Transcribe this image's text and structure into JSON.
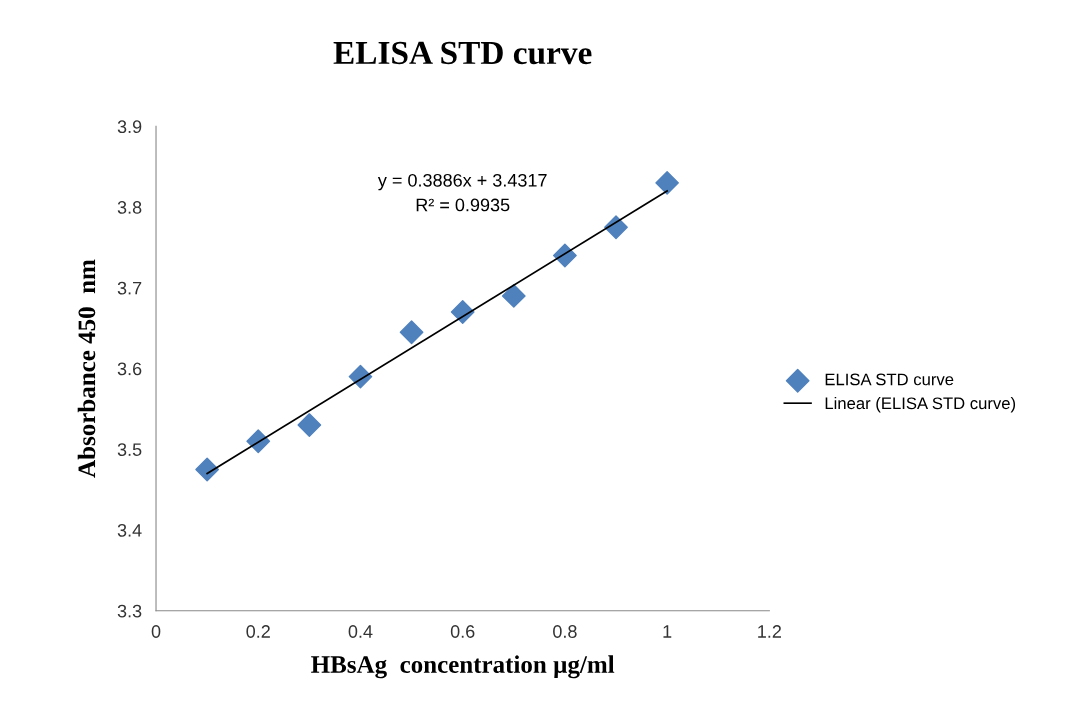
{
  "chart_data": {
    "type": "scatter",
    "title": "ELISA STD curve",
    "xlabel": "HBsAg  concentration µg/ml",
    "ylabel": "Absorbance 450  nm",
    "x": [
      0.1,
      0.2,
      0.3,
      0.4,
      0.5,
      0.6,
      0.7,
      0.8,
      0.9,
      1.0
    ],
    "series": [
      {
        "name": "ELISA STD curve",
        "color": "#4f81bd",
        "marker": "diamond",
        "values": [
          3.475,
          3.51,
          3.53,
          3.59,
          3.645,
          3.67,
          3.69,
          3.74,
          3.775,
          3.83
        ]
      },
      {
        "name": "Linear (ELISA STD curve)",
        "type": "line",
        "color": "#000000",
        "marker": "none",
        "line_style": "solid",
        "x": [
          0.1,
          1.0
        ],
        "values": [
          3.47,
          3.82
        ]
      }
    ],
    "annotations": [
      "y = 0.3886x + 3.4317\nR² = 0.9935"
    ],
    "xlim": [
      0,
      1.2
    ],
    "xticks": [
      0,
      0.2,
      0.4,
      0.6,
      0.8,
      1,
      1.2
    ],
    "ylim": [
      3.3,
      3.9
    ],
    "yticks": [
      3.3,
      3.4,
      3.5,
      3.6,
      3.7,
      3.8,
      3.9
    ],
    "grid": false,
    "legend": "right"
  }
}
